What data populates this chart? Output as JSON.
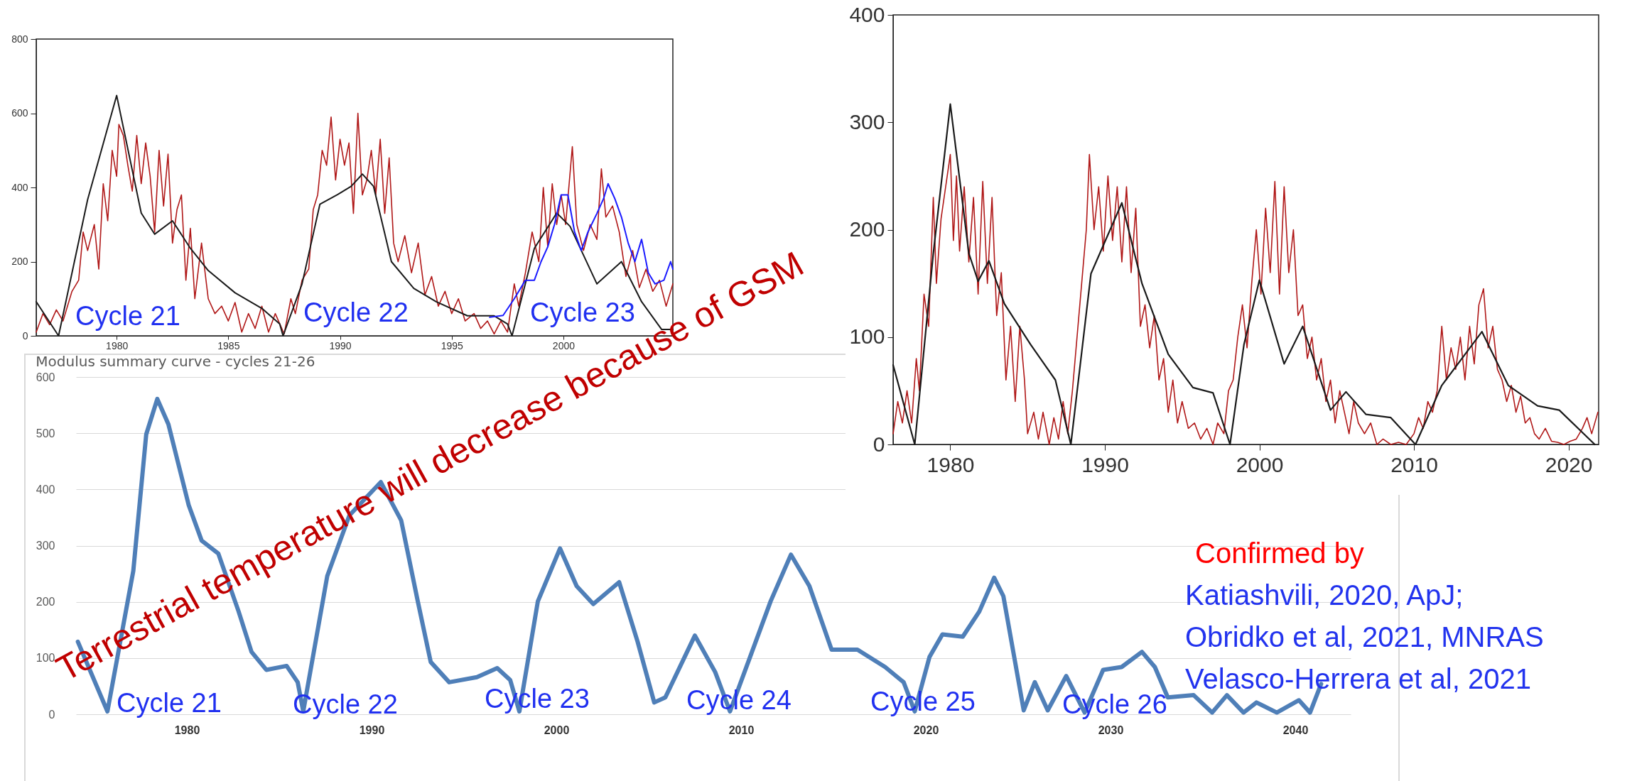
{
  "chart_data": [
    {
      "type": "line",
      "xlim": [
        1976.4,
        2004.9
      ],
      "ylim": [
        0,
        800
      ],
      "xticks": [
        1980,
        1985,
        1990,
        1995,
        2000
      ],
      "yticks": [
        0,
        200,
        400,
        600,
        800
      ],
      "grid": false,
      "series": [
        {
          "color": "#b01818",
          "x": [
            1976.4,
            1976.7,
            1977,
            1977.3,
            1977.6,
            1978,
            1978.3,
            1978.5,
            1978.7,
            1979,
            1979.2,
            1979.4,
            1979.6,
            1979.8,
            1980,
            1980.1,
            1980.3,
            1980.5,
            1980.7,
            1980.9,
            1981.1,
            1981.3,
            1981.5,
            1981.7,
            1981.9,
            1982.1,
            1982.3,
            1982.5,
            1982.7,
            1982.9,
            1983.1,
            1983.3,
            1983.5,
            1983.8,
            1984.1,
            1984.4,
            1984.7,
            1985,
            1985.3,
            1985.6,
            1985.9,
            1986.2,
            1986.5,
            1986.8,
            1987.1,
            1987.5,
            1987.8,
            1988,
            1988.3,
            1988.6,
            1988.8,
            1989,
            1989.2,
            1989.4,
            1989.6,
            1989.8,
            1990,
            1990.2,
            1990.4,
            1990.6,
            1990.8,
            1991,
            1991.2,
            1991.4,
            1991.6,
            1991.8,
            1992,
            1992.2,
            1992.4,
            1992.6,
            1992.9,
            1993.2,
            1993.5,
            1993.8,
            1994.1,
            1994.4,
            1994.7,
            1995,
            1995.3,
            1995.6,
            1996,
            1996.3,
            1996.6,
            1996.9,
            1997.2,
            1997.5,
            1997.8,
            1998,
            1998.3,
            1998.6,
            1998.9,
            1999.1,
            1999.3,
            1999.5,
            1999.7,
            1999.9,
            2000.1,
            2000.4,
            2000.6,
            2000.9,
            2001.2,
            2001.5,
            2001.7,
            2001.9,
            2002.2,
            2002.5,
            2002.8,
            2003.1,
            2003.4,
            2003.7,
            2004,
            2004.3,
            2004.6,
            2004.9
          ],
          "values": [
            10,
            60,
            30,
            70,
            40,
            120,
            150,
            280,
            230,
            300,
            180,
            410,
            310,
            500,
            430,
            570,
            540,
            460,
            390,
            540,
            410,
            520,
            430,
            280,
            500,
            350,
            490,
            250,
            340,
            380,
            150,
            290,
            100,
            250,
            100,
            60,
            80,
            40,
            90,
            10,
            60,
            20,
            80,
            10,
            60,
            5,
            100,
            60,
            150,
            180,
            340,
            380,
            500,
            460,
            590,
            420,
            530,
            460,
            520,
            330,
            600,
            380,
            420,
            500,
            380,
            530,
            330,
            480,
            250,
            200,
            270,
            170,
            250,
            110,
            160,
            80,
            120,
            60,
            100,
            40,
            60,
            20,
            40,
            5,
            40,
            10,
            140,
            80,
            170,
            280,
            200,
            400,
            240,
            410,
            300,
            380,
            300,
            510,
            300,
            230,
            300,
            260,
            450,
            320,
            350,
            280,
            160,
            230,
            130,
            180,
            120,
            150,
            80,
            140
          ]
        },
        {
          "color": "#1a1a1a",
          "x": [
            1976.4,
            1977.4,
            1978.7,
            1980,
            1981.1,
            1981.7,
            1982.5,
            1983.3,
            1984.1,
            1985.3,
            1986.5,
            1987.3,
            1987.45,
            1988.3,
            1989.1,
            1989.9,
            1990.5,
            1991,
            1991.5,
            1992.3,
            1993.3,
            1994.3,
            1995.7,
            1996.9,
            1997.5,
            1997.7,
            1998.7,
            1999.7,
            2000.3,
            2001.5,
            2002.6,
            2003.5,
            2004.4,
            2004.9
          ],
          "values": [
            92,
            0,
            367,
            648,
            331,
            274,
            310,
            236,
            176,
            116,
            74,
            32,
            0,
            140,
            355,
            381,
            403,
            436,
            403,
            200,
            128,
            92,
            54,
            54,
            32,
            0,
            236,
            331,
            295,
            140,
            200,
            92,
            17,
            17
          ]
        },
        {
          "color": "#1a1aff",
          "x": [
            1996.7,
            1997.3,
            1997.8,
            1998.3,
            1998.7,
            1999,
            1999.3,
            1999.6,
            1999.9,
            2000.2,
            2000.5,
            2000.8,
            2001.1,
            2001.5,
            2001.8,
            2002,
            2002.3,
            2002.6,
            2002.9,
            2003.2,
            2003.5,
            2003.8,
            2004.1,
            2004.5,
            2004.8,
            2004.9
          ],
          "values": [
            50,
            55,
            100,
            150,
            150,
            200,
            240,
            300,
            380,
            380,
            280,
            230,
            280,
            330,
            370,
            410,
            370,
            320,
            250,
            200,
            260,
            170,
            140,
            150,
            200,
            180
          ]
        }
      ],
      "annotations": [
        "Cycle 21",
        "Cycle 22",
        "Cycle 23"
      ]
    },
    {
      "type": "line",
      "xlim": [
        1976.3,
        2021.95
      ],
      "ylim": [
        0,
        400
      ],
      "xticks": [
        1980,
        1990,
        2000,
        2010,
        2020
      ],
      "yticks": [
        0,
        100,
        200,
        300,
        400
      ],
      "grid": false,
      "series": [
        {
          "color": "#b01818",
          "x": [
            1976.3,
            1976.6,
            1976.9,
            1977.2,
            1977.5,
            1977.8,
            1978,
            1978.3,
            1978.6,
            1978.9,
            1979.1,
            1979.4,
            1979.7,
            1980,
            1980.2,
            1980.4,
            1980.6,
            1980.9,
            1981.2,
            1981.5,
            1981.8,
            1982.1,
            1982.4,
            1982.7,
            1983,
            1983.3,
            1983.6,
            1983.9,
            1984.2,
            1984.5,
            1984.8,
            1985,
            1985.4,
            1985.7,
            1986,
            1986.4,
            1986.7,
            1987,
            1987.3,
            1987.6,
            1987.9,
            1988.2,
            1988.5,
            1988.8,
            1989,
            1989.3,
            1989.6,
            1989.9,
            1990.2,
            1990.5,
            1990.8,
            1991.1,
            1991.4,
            1991.7,
            1992,
            1992.3,
            1992.6,
            1992.9,
            1993.2,
            1993.5,
            1993.8,
            1994.1,
            1994.4,
            1994.7,
            1995,
            1995.4,
            1995.8,
            1996.2,
            1996.6,
            1997,
            1997.3,
            1997.7,
            1998,
            1998.3,
            1998.6,
            1998.9,
            1999.2,
            1999.5,
            1999.8,
            2000.1,
            2000.4,
            2000.7,
            2001,
            2001.3,
            2001.6,
            2001.9,
            2002.2,
            2002.5,
            2002.8,
            2003.1,
            2003.4,
            2003.7,
            2004,
            2004.3,
            2004.6,
            2004.9,
            2005.2,
            2005.5,
            2005.8,
            2006.1,
            2006.4,
            2006.8,
            2007.2,
            2007.6,
            2008,
            2008.5,
            2009,
            2009.5,
            2010,
            2010.3,
            2010.6,
            2010.9,
            2011.2,
            2011.5,
            2011.8,
            2012.1,
            2012.4,
            2012.7,
            2013,
            2013.3,
            2013.6,
            2013.9,
            2014.2,
            2014.5,
            2014.8,
            2015.1,
            2015.4,
            2015.7,
            2016,
            2016.3,
            2016.6,
            2016.9,
            2017.2,
            2017.5,
            2017.8,
            2018.1,
            2018.5,
            2018.9,
            2019.3,
            2019.7,
            2020.1,
            2020.5,
            2020.9,
            2021.2,
            2021.5,
            2021.9
          ],
          "values": [
            10,
            40,
            20,
            50,
            20,
            80,
            50,
            140,
            110,
            230,
            150,
            210,
            240,
            270,
            190,
            250,
            180,
            240,
            170,
            230,
            140,
            245,
            150,
            230,
            120,
            160,
            60,
            110,
            40,
            110,
            60,
            10,
            30,
            5,
            30,
            0,
            25,
            5,
            40,
            10,
            50,
            100,
            150,
            200,
            270,
            200,
            240,
            180,
            250,
            190,
            240,
            170,
            240,
            160,
            220,
            110,
            130,
            90,
            120,
            60,
            80,
            30,
            60,
            20,
            40,
            15,
            20,
            5,
            15,
            0,
            20,
            10,
            50,
            60,
            100,
            130,
            90,
            150,
            200,
            140,
            220,
            160,
            245,
            140,
            240,
            160,
            200,
            120,
            130,
            80,
            100,
            60,
            80,
            40,
            60,
            20,
            50,
            30,
            10,
            40,
            20,
            10,
            20,
            0,
            5,
            0,
            2,
            0,
            10,
            25,
            15,
            40,
            30,
            50,
            110,
            60,
            90,
            70,
            100,
            60,
            110,
            75,
            130,
            145,
            90,
            110,
            70,
            60,
            40,
            55,
            30,
            45,
            20,
            25,
            10,
            5,
            15,
            3,
            2,
            0,
            3,
            5,
            15,
            25,
            10,
            30
          ]
        },
        {
          "color": "#1a1a1a",
          "x": [
            1976.3,
            1977.7,
            1978.9,
            1980,
            1981.2,
            1981.8,
            1982.5,
            1983.5,
            1985.2,
            1986.8,
            1987.8,
            1989.1,
            1991.1,
            1992.4,
            1994.1,
            1995.7,
            1997,
            1998.1,
            1999,
            2000,
            2001.6,
            2002.8,
            2004.6,
            2005.6,
            2006.9,
            2008.5,
            2010.1,
            2011.8,
            2014.4,
            2016.1,
            2018,
            2019.4,
            2021.7
          ],
          "values": [
            74,
            0,
            178,
            317,
            178,
            152,
            171,
            131,
            93,
            60,
            0,
            159,
            225,
            150,
            84,
            53,
            48,
            0,
            93,
            153,
            75,
            110,
            32,
            49,
            28,
            25,
            0,
            55,
            105,
            55,
            36,
            32,
            0
          ]
        }
      ]
    },
    {
      "type": "line",
      "title": "Modulus summary curve - cycles 21-26",
      "xlim": [
        1974,
        2043
      ],
      "ylim": [
        0,
        600
      ],
      "xticks": [
        1980,
        1990,
        2000,
        2010,
        2020,
        2030,
        2040
      ],
      "yticks": [
        0,
        100,
        200,
        300,
        400,
        500,
        600
      ],
      "grid": "y",
      "series": [
        {
          "color": "#4f7fb8",
          "x": [
            1974.1,
            1975.7,
            1977.1,
            1977.8,
            1978.4,
            1979,
            1980.1,
            1980.8,
            1981.7,
            1982.8,
            1983.5,
            1984.3,
            1985.4,
            1986,
            1986.3,
            1987.6,
            1988.8,
            1990.5,
            1991.6,
            1992.5,
            1993.2,
            1994.2,
            1995.7,
            1996.8,
            1997.5,
            1998,
            1999,
            2000.2,
            2001.1,
            2002,
            2003.4,
            2004.4,
            2005.3,
            2005.9,
            2007.5,
            2008.6,
            2009.4,
            2011.6,
            2012.7,
            2013.7,
            2014.9,
            2016.3,
            2017.8,
            2018.8,
            2019.4,
            2020.2,
            2020.9,
            2022,
            2022.9,
            2023.7,
            2024.2,
            2025.3,
            2025.9,
            2026.6,
            2027.6,
            2028.6,
            2029.6,
            2030.6,
            2031.7,
            2032.4,
            2033.1,
            2034.5,
            2035.5,
            2036.3,
            2037.2,
            2037.9,
            2039,
            2040.2,
            2040.8,
            2041.4
          ],
          "values": [
            129,
            5,
            255,
            498,
            561,
            516,
            372,
            309,
            286,
            183,
            111,
            79,
            86,
            57,
            5,
            246,
            354,
            413,
            345,
            201,
            93,
            57,
            66,
            82,
            61,
            5,
            201,
            295,
            228,
            196,
            235,
            129,
            21,
            30,
            140,
            75,
            5,
            201,
            284,
            228,
            115,
            115,
            84,
            57,
            5,
            102,
            142,
            138,
            183,
            243,
            210,
            7,
            57,
            7,
            68,
            3,
            79,
            84,
            111,
            84,
            30,
            34,
            3,
            34,
            3,
            21,
            3,
            25,
            3,
            54
          ]
        }
      ],
      "annotations": [
        "Cycle 21",
        "Cycle 22",
        "Cycle 23",
        "Cycle 24",
        "Cycle 25",
        "Cycle 26",
        "Terrestrial temperature will decrease because of GSM",
        "Confirmed by",
        "Katiashvili, 2020, ApJ;",
        "Obridko et al, 2021, MNRAS",
        "Velasco-Herrera et al, 2021"
      ]
    }
  ]
}
